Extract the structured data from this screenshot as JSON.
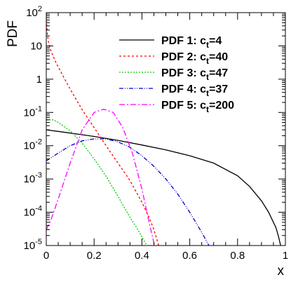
{
  "chart_data": {
    "type": "line",
    "title": "",
    "xlabel": "x",
    "ylabel": "PDF",
    "xlim": [
      0,
      1
    ],
    "ylim": [
      1e-05,
      100
    ],
    "yscale": "log",
    "grid": false,
    "legend_position": "top-right",
    "x_ticks": [
      {
        "value": 0,
        "label": "0"
      },
      {
        "value": 0.2,
        "label": "0.2"
      },
      {
        "value": 0.4,
        "label": "0.4"
      },
      {
        "value": 0.6,
        "label": "0.6"
      },
      {
        "value": 0.8,
        "label": "0.8"
      },
      {
        "value": 1,
        "label": "1"
      }
    ],
    "y_ticks": [
      {
        "value": 1e-05,
        "mant": "10",
        "exp": "-5"
      },
      {
        "value": 0.0001,
        "mant": "10",
        "exp": "-4"
      },
      {
        "value": 0.001,
        "mant": "10",
        "exp": "-3"
      },
      {
        "value": 0.01,
        "mant": "10",
        "exp": "-2"
      },
      {
        "value": 0.1,
        "mant": "10",
        "exp": "-1"
      },
      {
        "value": 1,
        "mant": "1",
        "exp": ""
      },
      {
        "value": 10,
        "mant": "10",
        "exp": ""
      },
      {
        "value": 100,
        "mant": "10",
        "exp": "2"
      }
    ],
    "series": [
      {
        "label_main": "PDF 1: c",
        "label_sub": "t",
        "label_tail": "=4",
        "color": "#000000",
        "dash": "",
        "x": [
          0,
          0.05,
          0.1,
          0.2,
          0.3,
          0.4,
          0.5,
          0.6,
          0.7,
          0.8,
          0.85,
          0.9,
          0.93,
          0.96,
          0.97,
          0.98
        ],
        "y": [
          0.03,
          0.027,
          0.024,
          0.019,
          0.0145,
          0.0105,
          0.0075,
          0.005,
          0.003,
          0.00125,
          0.0006,
          0.00022,
          0.0001,
          3.5e-05,
          2e-05,
          1e-05
        ]
      },
      {
        "label_main": "PDF 2: c",
        "label_sub": "t",
        "label_tail": "=40",
        "color": "#ff0000",
        "dash": "3,3",
        "x": [
          0,
          0.005,
          0.01,
          0.02,
          0.04,
          0.06,
          0.1,
          0.15,
          0.2,
          0.25,
          0.3,
          0.35,
          0.4,
          0.43,
          0.45,
          0.47
        ],
        "y": [
          60,
          22,
          12,
          7,
          3.2,
          1.7,
          0.5,
          0.12,
          0.035,
          0.01,
          0.003,
          0.0009,
          0.0002,
          7e-05,
          3e-05,
          1e-05
        ]
      },
      {
        "label_main": "PDF 3: c",
        "label_sub": "t",
        "label_tail": "=47",
        "color": "#00cc00",
        "dash": "2,2",
        "x": [
          0,
          0.03,
          0.05,
          0.1,
          0.15,
          0.2,
          0.25,
          0.3,
          0.35,
          0.38,
          0.4,
          0.42,
          0.44
        ],
        "y": [
          0.06,
          0.06,
          0.05,
          0.028,
          0.012,
          0.004,
          0.0012,
          0.0003,
          7e-05,
          3.3e-05,
          1.8e-05,
          1e-05,
          5.5e-06
        ]
      },
      {
        "label_main": "PDF 4: c",
        "label_sub": "t",
        "label_tail": "=37",
        "color": "#0000cc",
        "dash": "6,2,1,2,1,2",
        "x": [
          0,
          0.05,
          0.1,
          0.15,
          0.2,
          0.25,
          0.3,
          0.35,
          0.4,
          0.45,
          0.5,
          0.55,
          0.6,
          0.65,
          0.68
        ],
        "y": [
          0.0035,
          0.006,
          0.01,
          0.014,
          0.016,
          0.016,
          0.013,
          0.009,
          0.005,
          0.0024,
          0.001,
          0.00035,
          0.0001,
          2.5e-05,
          1e-05
        ]
      },
      {
        "label_main": "PDF 5: c",
        "label_sub": "t",
        "label_tail": "=200",
        "color": "#ff00ff",
        "dash": "8,3,2,3",
        "x": [
          0,
          0.02,
          0.05,
          0.1,
          0.15,
          0.2,
          0.24,
          0.28,
          0.32,
          0.36,
          0.4,
          0.43,
          0.45,
          0.46
        ],
        "y": [
          3e-05,
          6e-05,
          0.00025,
          0.003,
          0.03,
          0.1,
          0.125,
          0.1,
          0.035,
          0.006,
          0.0005,
          5e-05,
          1.2e-05,
          5e-06
        ]
      }
    ]
  }
}
